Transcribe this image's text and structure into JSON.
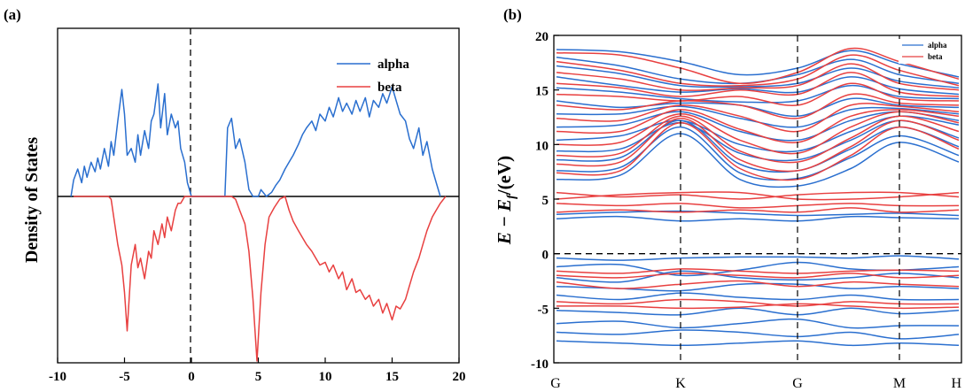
{
  "chart_data": [
    {
      "type": "line",
      "panel_label": "(a)",
      "ylabel": "Density of States",
      "xlabel": "",
      "xlim": [
        -10,
        20
      ],
      "xticks": [
        "-10",
        "-5",
        "0",
        "5",
        "10",
        "15",
        "20"
      ],
      "ylim": [
        -1,
        1
      ],
      "yticks_shown": false,
      "zero_line_vertical": true,
      "legend_position": "top-right",
      "colors": {
        "alpha": "#2a6fcf",
        "beta": "#e84040"
      },
      "series": [
        {
          "name": "alpha",
          "x": [
            -9.0,
            -8.8,
            -8.5,
            -8.2,
            -8.0,
            -7.8,
            -7.5,
            -7.2,
            -7.0,
            -6.8,
            -6.5,
            -6.2,
            -6.0,
            -5.8,
            -5.5,
            -5.2,
            -5.0,
            -4.8,
            -4.5,
            -4.2,
            -4.0,
            -3.8,
            -3.5,
            -3.2,
            -3.0,
            -2.8,
            -2.5,
            -2.3,
            -2.0,
            -1.8,
            -1.5,
            -1.2,
            -1.0,
            -0.8,
            -0.5,
            -0.3,
            0.0,
            2.5,
            2.7,
            3.0,
            3.3,
            3.6,
            4.0,
            4.3,
            4.6,
            5.0,
            5.2,
            5.6,
            6.0,
            6.3,
            6.6,
            7.0,
            7.3,
            7.6,
            8.0,
            8.3,
            8.6,
            9.0,
            9.3,
            9.6,
            10.0,
            10.3,
            10.6,
            11.0,
            11.3,
            11.6,
            12.0,
            12.3,
            12.6,
            13.0,
            13.3,
            13.6,
            14.0,
            14.3,
            14.6,
            15.0,
            15.3,
            15.6,
            16.0,
            16.3,
            16.6,
            17.0,
            17.3,
            17.6,
            18.0,
            18.3,
            18.6
          ],
          "values": [
            0.0,
            0.12,
            0.2,
            0.1,
            0.22,
            0.14,
            0.25,
            0.18,
            0.28,
            0.2,
            0.35,
            0.22,
            0.4,
            0.3,
            0.55,
            0.78,
            0.6,
            0.3,
            0.35,
            0.25,
            0.45,
            0.3,
            0.48,
            0.35,
            0.55,
            0.6,
            0.82,
            0.5,
            0.75,
            0.45,
            0.6,
            0.5,
            0.55,
            0.35,
            0.25,
            0.1,
            0.0,
            0.0,
            0.5,
            0.57,
            0.35,
            0.42,
            0.25,
            0.05,
            0.0,
            0.0,
            0.05,
            0.0,
            0.03,
            0.08,
            0.12,
            0.2,
            0.25,
            0.3,
            0.38,
            0.45,
            0.5,
            0.55,
            0.48,
            0.6,
            0.55,
            0.65,
            0.58,
            0.72,
            0.62,
            0.68,
            0.6,
            0.7,
            0.62,
            0.72,
            0.58,
            0.7,
            0.65,
            0.75,
            0.68,
            0.8,
            0.7,
            0.6,
            0.55,
            0.42,
            0.35,
            0.5,
            0.3,
            0.4,
            0.2,
            0.1,
            0.0
          ]
        },
        {
          "name": "beta",
          "x": [
            -8.8,
            -8.5,
            -8.2,
            -8.0,
            -7.8,
            -7.5,
            -7.2,
            -7.0,
            -6.8,
            -6.5,
            -6.2,
            -6.0,
            -5.5,
            -5.2,
            -5.0,
            -4.8,
            -4.5,
            -4.2,
            -4.0,
            -3.8,
            -3.5,
            -3.2,
            -3.0,
            -2.8,
            -2.5,
            -2.2,
            -2.0,
            -1.8,
            -1.5,
            -1.2,
            -1.0,
            -0.8,
            -0.5,
            -0.3,
            0.0,
            2.5,
            2.8,
            3.0,
            3.3,
            3.6,
            4.0,
            4.3,
            4.6,
            4.9,
            5.2,
            5.5,
            5.8,
            6.2,
            6.6,
            7.0,
            7.3,
            7.6,
            8.0,
            8.3,
            8.6,
            9.0,
            9.3,
            9.6,
            10.0,
            10.3,
            10.6,
            11.0,
            11.3,
            11.6,
            12.0,
            12.3,
            12.6,
            13.0,
            13.3,
            13.6,
            14.0,
            14.3,
            14.6,
            15.0,
            15.3,
            15.6,
            16.0,
            16.3,
            16.6,
            17.0,
            17.3,
            17.6,
            18.0,
            18.3,
            18.6,
            19.0
          ],
          "values": [
            0.0,
            0.0,
            0.0,
            0.0,
            0.0,
            0.0,
            0.0,
            0.0,
            0.0,
            0.0,
            0.0,
            -0.02,
            -0.35,
            -0.5,
            -0.7,
            -0.98,
            -0.5,
            -0.35,
            -0.52,
            -0.45,
            -0.6,
            -0.4,
            -0.45,
            -0.25,
            -0.35,
            -0.2,
            -0.3,
            -0.15,
            -0.25,
            -0.1,
            -0.05,
            -0.05,
            0.0,
            0.0,
            0.0,
            0.0,
            0.0,
            0.0,
            -0.02,
            -0.1,
            -0.2,
            -0.4,
            -0.75,
            -1.2,
            -0.7,
            -0.35,
            -0.15,
            -0.08,
            -0.02,
            0.0,
            -0.1,
            -0.18,
            -0.25,
            -0.3,
            -0.35,
            -0.4,
            -0.45,
            -0.5,
            -0.48,
            -0.55,
            -0.5,
            -0.6,
            -0.55,
            -0.68,
            -0.6,
            -0.7,
            -0.68,
            -0.75,
            -0.72,
            -0.8,
            -0.75,
            -0.85,
            -0.78,
            -0.9,
            -0.8,
            -0.82,
            -0.75,
            -0.65,
            -0.55,
            -0.45,
            -0.35,
            -0.25,
            -0.15,
            -0.1,
            -0.05,
            0.0
          ]
        }
      ]
    },
    {
      "type": "line",
      "panel_label": "(b)",
      "ylabel_main": "E − E",
      "ylabel_sub": "f",
      "ylabel_tail": "/(eV)",
      "ylim": [
        -10,
        20
      ],
      "yticks": [
        "20",
        "15",
        "10",
        "5",
        "0",
        "-5",
        "-10"
      ],
      "kpoint_labels": [
        "G",
        "K",
        "G",
        "M",
        "H"
      ],
      "fermi_line": 0,
      "legend_position": "top-right",
      "colors": {
        "alpha": "#2a6fcf",
        "beta": "#e84040"
      },
      "series": [
        {
          "name": "alpha",
          "bands": [
            [
              18.7,
              18.5,
              17.6,
              16.4,
              17.0,
              18.6,
              17.4,
              16.2
            ],
            [
              18.0,
              17.2,
              16.0,
              15.6,
              16.4,
              17.8,
              16.4,
              15.6
            ],
            [
              17.2,
              16.5,
              15.4,
              15.3,
              15.6,
              17.0,
              15.8,
              15.2
            ],
            [
              16.2,
              15.4,
              14.8,
              15.1,
              14.8,
              16.2,
              15.1,
              14.6
            ],
            [
              15.2,
              14.8,
              14.2,
              13.9,
              14.0,
              15.4,
              14.4,
              14.2
            ],
            [
              14.0,
              13.4,
              13.8,
              13.6,
              12.6,
              14.2,
              13.6,
              13.4
            ],
            [
              12.8,
              12.8,
              13.5,
              12.4,
              11.6,
              13.2,
              13.3,
              12.8
            ],
            [
              11.6,
              11.8,
              13.0,
              11.2,
              10.4,
              12.2,
              13.0,
              12.2
            ],
            [
              10.4,
              10.8,
              12.2,
              10.0,
              9.4,
              11.2,
              12.6,
              11.8
            ],
            [
              9.4,
              9.6,
              12.0,
              9.2,
              8.6,
              10.4,
              12.2,
              10.6
            ],
            [
              8.6,
              8.8,
              12.2,
              8.2,
              7.6,
              9.6,
              11.6,
              9.8
            ],
            [
              7.6,
              7.9,
              11.6,
              7.4,
              6.9,
              8.8,
              10.8,
              9.0
            ],
            [
              6.8,
              7.2,
              11.0,
              6.8,
              6.2,
              7.8,
              10.2,
              8.4
            ],
            [
              3.2,
              3.4,
              3.0,
              3.2,
              3.0,
              3.4,
              3.3,
              3.2
            ],
            [
              3.6,
              3.8,
              3.9,
              3.7,
              3.5,
              3.6,
              3.7,
              3.5
            ],
            [
              -0.4,
              -0.6,
              -0.4,
              -0.3,
              -0.3,
              -0.4,
              -0.2,
              -0.5
            ],
            [
              -1.2,
              -1.0,
              -2.0,
              -1.5,
              -0.8,
              -1.4,
              -1.5,
              -1.2
            ],
            [
              -2.2,
              -2.6,
              -1.6,
              -2.2,
              -2.4,
              -2.2,
              -1.8,
              -2.2
            ],
            [
              -3.0,
              -3.2,
              -3.4,
              -2.8,
              -2.8,
              -3.2,
              -3.0,
              -3.2
            ],
            [
              -3.8,
              -4.2,
              -3.6,
              -4.0,
              -4.2,
              -3.8,
              -4.2,
              -4.2
            ],
            [
              -5.2,
              -5.4,
              -5.6,
              -5.0,
              -5.6,
              -5.0,
              -5.5,
              -5.2
            ],
            [
              -6.4,
              -6.2,
              -6.8,
              -6.4,
              -6.0,
              -6.8,
              -6.6,
              -6.6
            ],
            [
              -7.2,
              -7.4,
              -7.0,
              -7.2,
              -7.6,
              -7.2,
              -7.8,
              -7.4
            ],
            [
              -8.0,
              -8.2,
              -8.4,
              -8.2,
              -8.0,
              -8.4,
              -8.2,
              -8.4
            ]
          ]
        },
        {
          "name": "beta",
          "bands": [
            [
              18.4,
              18.2,
              17.0,
              15.6,
              16.6,
              18.8,
              17.6,
              16.0
            ],
            [
              17.6,
              16.8,
              15.6,
              15.4,
              16.0,
              18.2,
              16.8,
              15.4
            ],
            [
              16.6,
              16.0,
              15.0,
              15.2,
              15.4,
              17.4,
              15.6,
              15.0
            ],
            [
              15.6,
              15.2,
              14.4,
              15.0,
              14.6,
              16.6,
              14.8,
              14.4
            ],
            [
              14.6,
              14.4,
              14.0,
              14.4,
              13.6,
              15.6,
              14.2,
              14.0
            ],
            [
              13.6,
              13.2,
              14.0,
              13.6,
              12.4,
              14.6,
              13.8,
              13.6
            ],
            [
              12.4,
              12.2,
              13.6,
              12.6,
              11.2,
              13.6,
              13.5,
              13.0
            ],
            [
              11.2,
              11.2,
              13.2,
              11.4,
              10.2,
              12.6,
              13.2,
              12.6
            ],
            [
              10.0,
              10.2,
              12.8,
              10.4,
              9.2,
              11.6,
              13.0,
              12.0
            ],
            [
              9.0,
              9.2,
              12.6,
              9.4,
              8.4,
              10.6,
              12.6,
              11.2
            ],
            [
              8.2,
              8.4,
              12.4,
              8.6,
              7.6,
              9.8,
              12.2,
              10.4
            ],
            [
              7.4,
              7.6,
              12.0,
              7.8,
              6.8,
              9.0,
              11.6,
              9.6
            ],
            [
              5.6,
              5.2,
              5.4,
              5.0,
              5.4,
              5.6,
              5.6,
              5.2
            ],
            [
              5.0,
              5.4,
              5.6,
              5.6,
              5.0,
              5.0,
              5.2,
              5.6
            ],
            [
              4.6,
              4.4,
              4.6,
              4.2,
              4.4,
              4.6,
              4.4,
              4.4
            ],
            [
              3.8,
              4.0,
              3.8,
              4.0,
              3.8,
              4.2,
              3.8,
              4.0
            ],
            [
              -1.6,
              -1.8,
              -1.4,
              -1.6,
              -1.8,
              -1.6,
              -1.5,
              -1.6
            ],
            [
              -2.0,
              -2.2,
              -1.8,
              -2.0,
              -2.2,
              -1.8,
              -2.2,
              -2.0
            ],
            [
              -2.6,
              -3.2,
              -2.8,
              -2.5,
              -3.0,
              -2.6,
              -2.8,
              -3.0
            ],
            [
              -4.4,
              -4.6,
              -4.2,
              -4.4,
              -4.8,
              -4.4,
              -4.6,
              -4.6
            ],
            [
              -4.8,
              -4.8,
              -5.0,
              -4.9,
              -4.6,
              -4.8,
              -5.0,
              -4.9
            ]
          ]
        }
      ]
    }
  ]
}
